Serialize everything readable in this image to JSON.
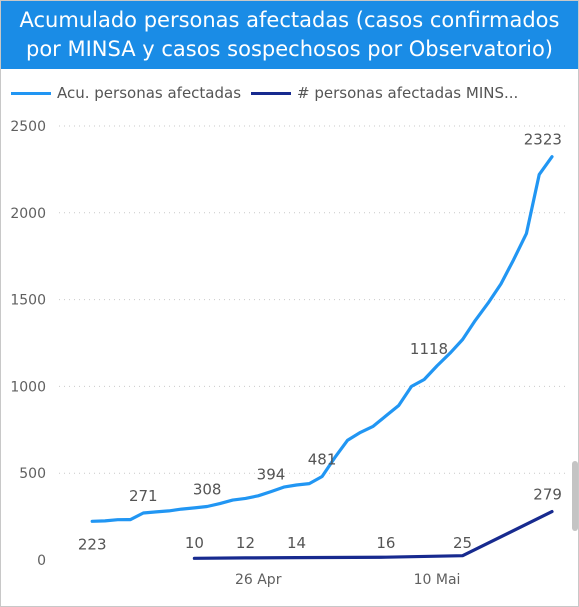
{
  "title": "Acumulado personas afectadas (casos confirmados por MINSA y casos sospechosos por Observatorio)",
  "colors": {
    "header_bg": "#1a8ce6",
    "series1": "#2196f3",
    "series2": "#172a8f"
  },
  "legend": [
    {
      "name": "Acu. personas afectadas",
      "color": "#2196f3"
    },
    {
      "name": "# personas afectadas MINS...",
      "color": "#172a8f"
    }
  ],
  "chart_data": {
    "type": "line",
    "x_tick_labels": [
      "26 Apr",
      "10 Mai"
    ],
    "x_ticks_day": [
      26,
      40
    ],
    "y_ticks": [
      "0",
      "500",
      "1000",
      "1500",
      "2000",
      "2500"
    ],
    "ylim": [
      0,
      2500
    ],
    "grid": true,
    "legend_position": "top-left",
    "series": [
      {
        "name": "Acu. personas afectadas",
        "color": "#2196f3",
        "points": [
          [
            13,
            223
          ],
          [
            14,
            225
          ],
          [
            15,
            232
          ],
          [
            16,
            233
          ],
          [
            17,
            271
          ],
          [
            18,
            277
          ],
          [
            19,
            283
          ],
          [
            20,
            293
          ],
          [
            21,
            300
          ],
          [
            22,
            308
          ],
          [
            23,
            325
          ],
          [
            24,
            345
          ],
          [
            25,
            355
          ],
          [
            26,
            370
          ],
          [
            27,
            394
          ],
          [
            28,
            420
          ],
          [
            29,
            432
          ],
          [
            30,
            440
          ],
          [
            31,
            481
          ],
          [
            32,
            590
          ],
          [
            33,
            690
          ],
          [
            34,
            735
          ],
          [
            35,
            770
          ],
          [
            36,
            830
          ],
          [
            37,
            890
          ],
          [
            38,
            1000
          ],
          [
            39,
            1040
          ],
          [
            40,
            1118
          ],
          [
            41,
            1190
          ],
          [
            42,
            1270
          ],
          [
            43,
            1380
          ],
          [
            44,
            1480
          ],
          [
            45,
            1590
          ],
          [
            46,
            1730
          ],
          [
            47,
            1880
          ],
          [
            48,
            2220
          ],
          [
            49,
            2323
          ]
        ]
      },
      {
        "name": "# personas afectadas MINS...",
        "color": "#172a8f",
        "points": [
          [
            21,
            10
          ],
          [
            25,
            12
          ],
          [
            29,
            14
          ],
          [
            36,
            16
          ],
          [
            42,
            25
          ],
          [
            49,
            279
          ]
        ]
      }
    ],
    "data_labels": [
      {
        "series": 0,
        "day": 13,
        "value": 223,
        "text": "223"
      },
      {
        "series": 0,
        "day": 17,
        "value": 271,
        "text": "271"
      },
      {
        "series": 0,
        "day": 22,
        "value": 308,
        "text": "308"
      },
      {
        "series": 0,
        "day": 27,
        "value": 394,
        "text": "394"
      },
      {
        "series": 0,
        "day": 31,
        "value": 481,
        "text": "481"
      },
      {
        "series": 0,
        "day": 40,
        "value": 1118,
        "text": "1118"
      },
      {
        "series": 0,
        "day": 49,
        "value": 2323,
        "text": "2323"
      },
      {
        "series": 1,
        "day": 21,
        "value": 10,
        "text": "10"
      },
      {
        "series": 1,
        "day": 25,
        "value": 12,
        "text": "12"
      },
      {
        "series": 1,
        "day": 29,
        "value": 14,
        "text": "14"
      },
      {
        "series": 1,
        "day": 36,
        "value": 16,
        "text": "16"
      },
      {
        "series": 1,
        "day": 42,
        "value": 25,
        "text": "25"
      },
      {
        "series": 1,
        "day": 49,
        "value": 279,
        "text": "279"
      }
    ]
  }
}
